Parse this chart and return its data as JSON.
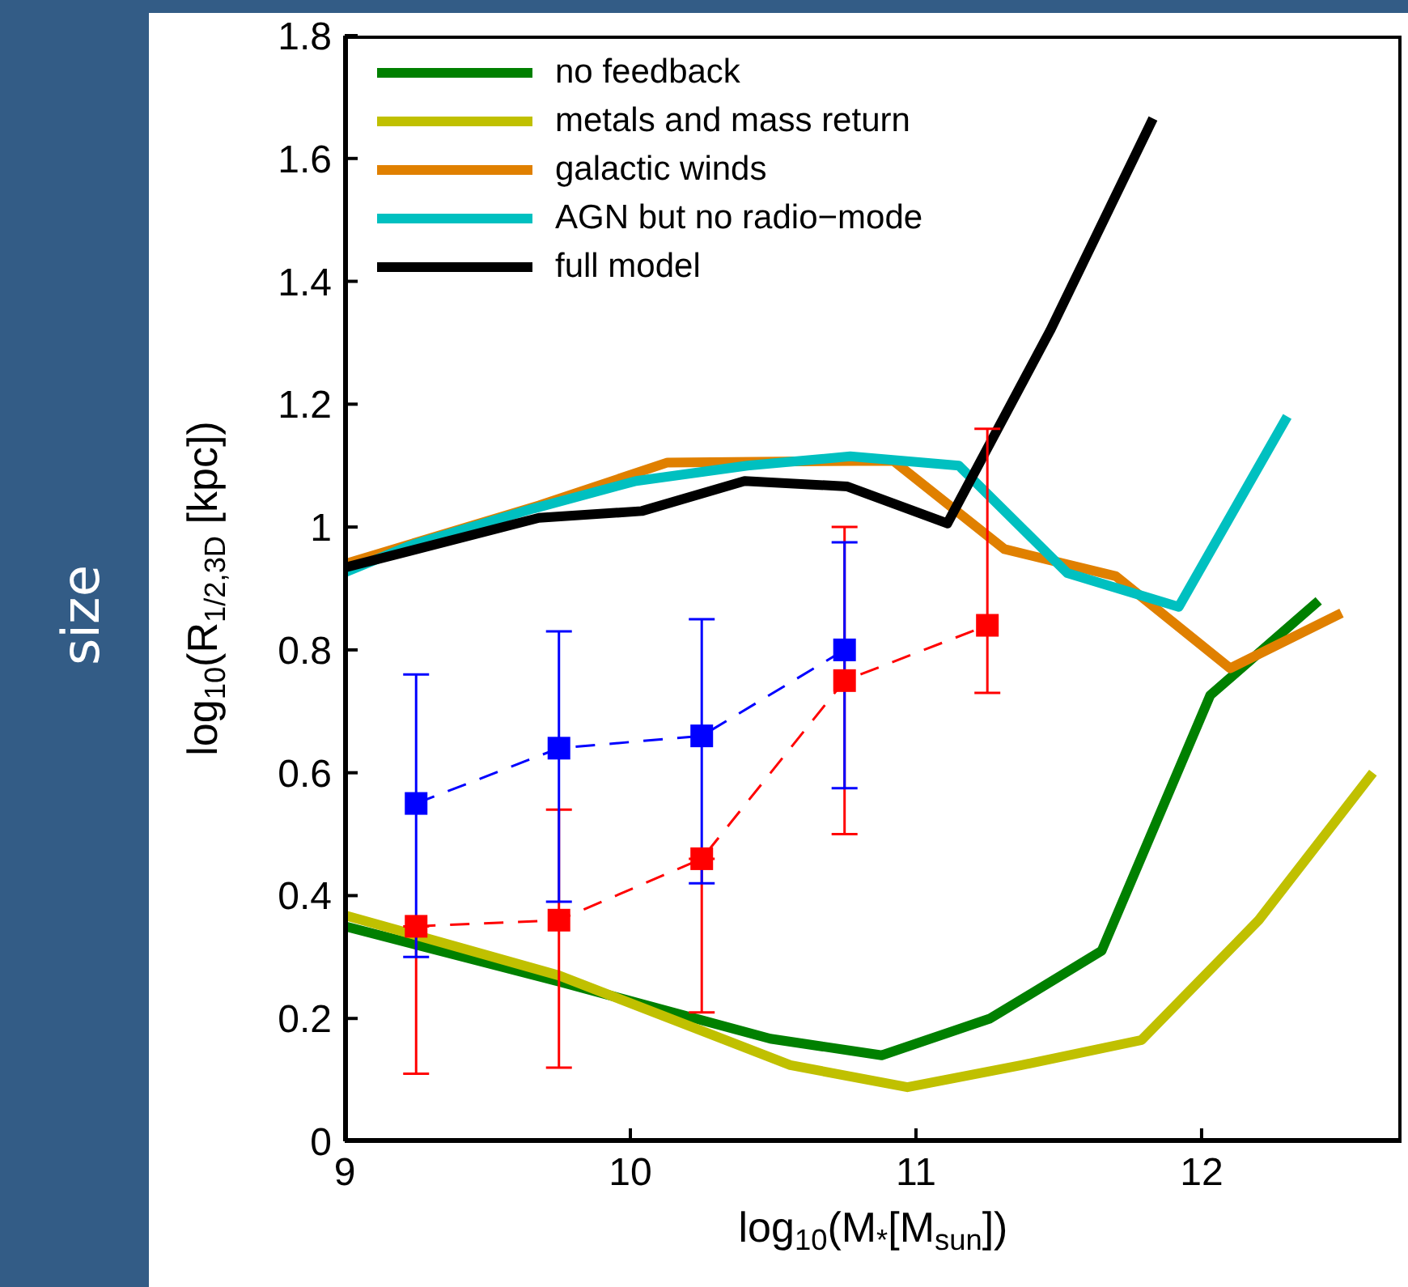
{
  "chart_data": {
    "type": "line",
    "title": "size",
    "xlabel": "log$_{10}$(M$_{*}$[M$_{sun}$])",
    "ylabel": "log$_{10}$(R$_{1/2,3D}$ [kpc])",
    "xlim": [
      9,
      12.7
    ],
    "xticks": [
      9,
      10,
      11,
      12
    ],
    "ylim": [
      0,
      1.8
    ],
    "yticks": [
      0,
      0.2,
      0.4,
      0.6,
      0.8,
      1,
      1.2,
      1.4,
      1.6,
      1.8
    ],
    "grid": false,
    "legend": "top left",
    "marker": "none",
    "line_style": "solid",
    "series": [
      {
        "name": "no feedback",
        "color": "#008000",
        "x": [
          9.0,
          9.75,
          10.49,
          10.88,
          11.26,
          11.65,
          12.03,
          12.41
        ],
        "values": [
          0.35,
          0.26,
          0.167,
          0.14,
          0.2,
          0.31,
          0.726,
          0.88
        ]
      },
      {
        "name": "metals and mass return",
        "color": "#c0c000",
        "x": [
          9.0,
          9.75,
          10.56,
          10.97,
          11.37,
          11.79,
          12.2,
          12.6
        ],
        "values": [
          0.368,
          0.27,
          0.124,
          0.088,
          0.124,
          0.165,
          0.36,
          0.6
        ]
      },
      {
        "name": "galactic winds",
        "color": "#e08000",
        "x": [
          9.0,
          9.68,
          10.13,
          10.92,
          11.31,
          11.7,
          12.1,
          12.49
        ],
        "values": [
          0.94,
          1.035,
          1.105,
          1.108,
          0.964,
          0.92,
          0.77,
          0.86
        ]
      },
      {
        "name": "AGN but no radio−mode",
        "color": "#00c0c0",
        "x": [
          9.0,
          9.23,
          9.66,
          10.02,
          10.41,
          10.77,
          11.15,
          11.53,
          11.92,
          12.3
        ],
        "values": [
          0.926,
          0.97,
          1.03,
          1.075,
          1.1,
          1.115,
          1.1,
          0.925,
          0.87,
          1.18
        ]
      },
      {
        "name": "full model",
        "color": "#000000",
        "x": [
          9.0,
          9.68,
          10.04,
          10.4,
          10.76,
          11.11,
          11.47,
          11.83
        ],
        "values": [
          0.934,
          1.015,
          1.026,
          1.075,
          1.066,
          1.006,
          1.32,
          1.665
        ]
      },
      {
        "color": "#ff0000",
        "marker": "square",
        "line_style": "dashed",
        "x": [
          9.25,
          9.75,
          10.25,
          10.75,
          11.25
        ],
        "values": [
          0.35,
          0.36,
          0.46,
          0.75,
          0.84
        ],
        "errors": [
          [
            0.11,
            0.35
          ],
          [
            0.12,
            0.54
          ],
          [
            0.21,
            0.46
          ],
          [
            0.5,
            1.0
          ],
          [
            0.73,
            1.16
          ]
        ]
      },
      {
        "color": "#0000ff",
        "marker": "square",
        "line_style": "dashed",
        "x": [
          9.25,
          9.75,
          10.25,
          10.75
        ],
        "values": [
          0.55,
          0.64,
          0.66,
          0.8
        ],
        "errors": [
          [
            0.3,
            0.76
          ],
          [
            0.39,
            0.83
          ],
          [
            0.42,
            0.85
          ],
          [
            0.575,
            0.975
          ]
        ]
      }
    ]
  }
}
